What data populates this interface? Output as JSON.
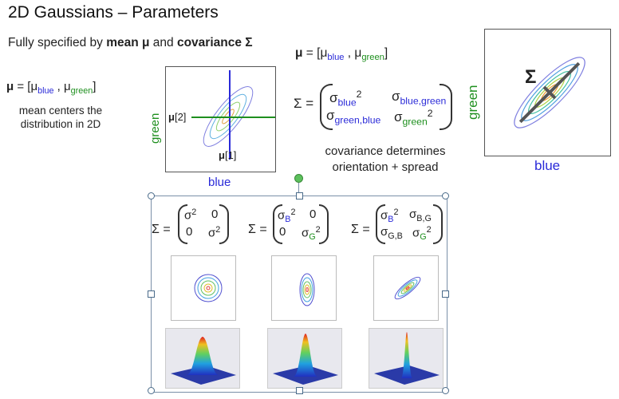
{
  "title": "2D Gaussians – Parameters",
  "intro": {
    "prefix": "Fully specified by ",
    "mean": "mean μ",
    "and": " and ",
    "cov": "covariance Σ"
  },
  "mean_def": {
    "mu": "μ",
    "eq": " = [μ",
    "blue": "blue",
    "sep": " , μ",
    "green": "green",
    "close": "]"
  },
  "mean_note": "mean centers the distribution in 2D",
  "plot_mean": {
    "xlabel": "blue",
    "ylabel": "green",
    "mu2": "[2]",
    "mu1": "[1]",
    "mu_sym": "μ"
  },
  "cov_def": {
    "sigma": "Σ",
    "eq": "=",
    "s": "σ",
    "blue": "blue",
    "green": "green",
    "blue_green": "blue,green",
    "green_blue": "green,blue",
    "sq": "2"
  },
  "cov_note": "covariance determines orientation + spread",
  "plot_cov": {
    "xlabel": "blue",
    "ylabel": "green",
    "sigma": "Σ"
  },
  "examples": [
    {
      "a": "σ",
      "a_sup": "2",
      "b": "0",
      "c": "0",
      "d": "σ",
      "d_sup": "2"
    },
    {
      "a": "σ",
      "a_sub": "B",
      "a_sup": "2",
      "b": "0",
      "c": "0",
      "d": "σ",
      "d_sub": "G",
      "d_sup": "2"
    },
    {
      "a": "σ",
      "a_sub": "B",
      "a_sup": "2",
      "b": "σ",
      "b_sub": "B,G",
      "c": "σ",
      "c_sub": "G,B",
      "d": "σ",
      "d_sub": "G",
      "d_sup": "2"
    }
  ],
  "colors": {
    "blue": "#2a2ad8",
    "green": "#1e8f1e",
    "selection": "#7a8fa8",
    "rotate_handle": "#5cc05c"
  }
}
